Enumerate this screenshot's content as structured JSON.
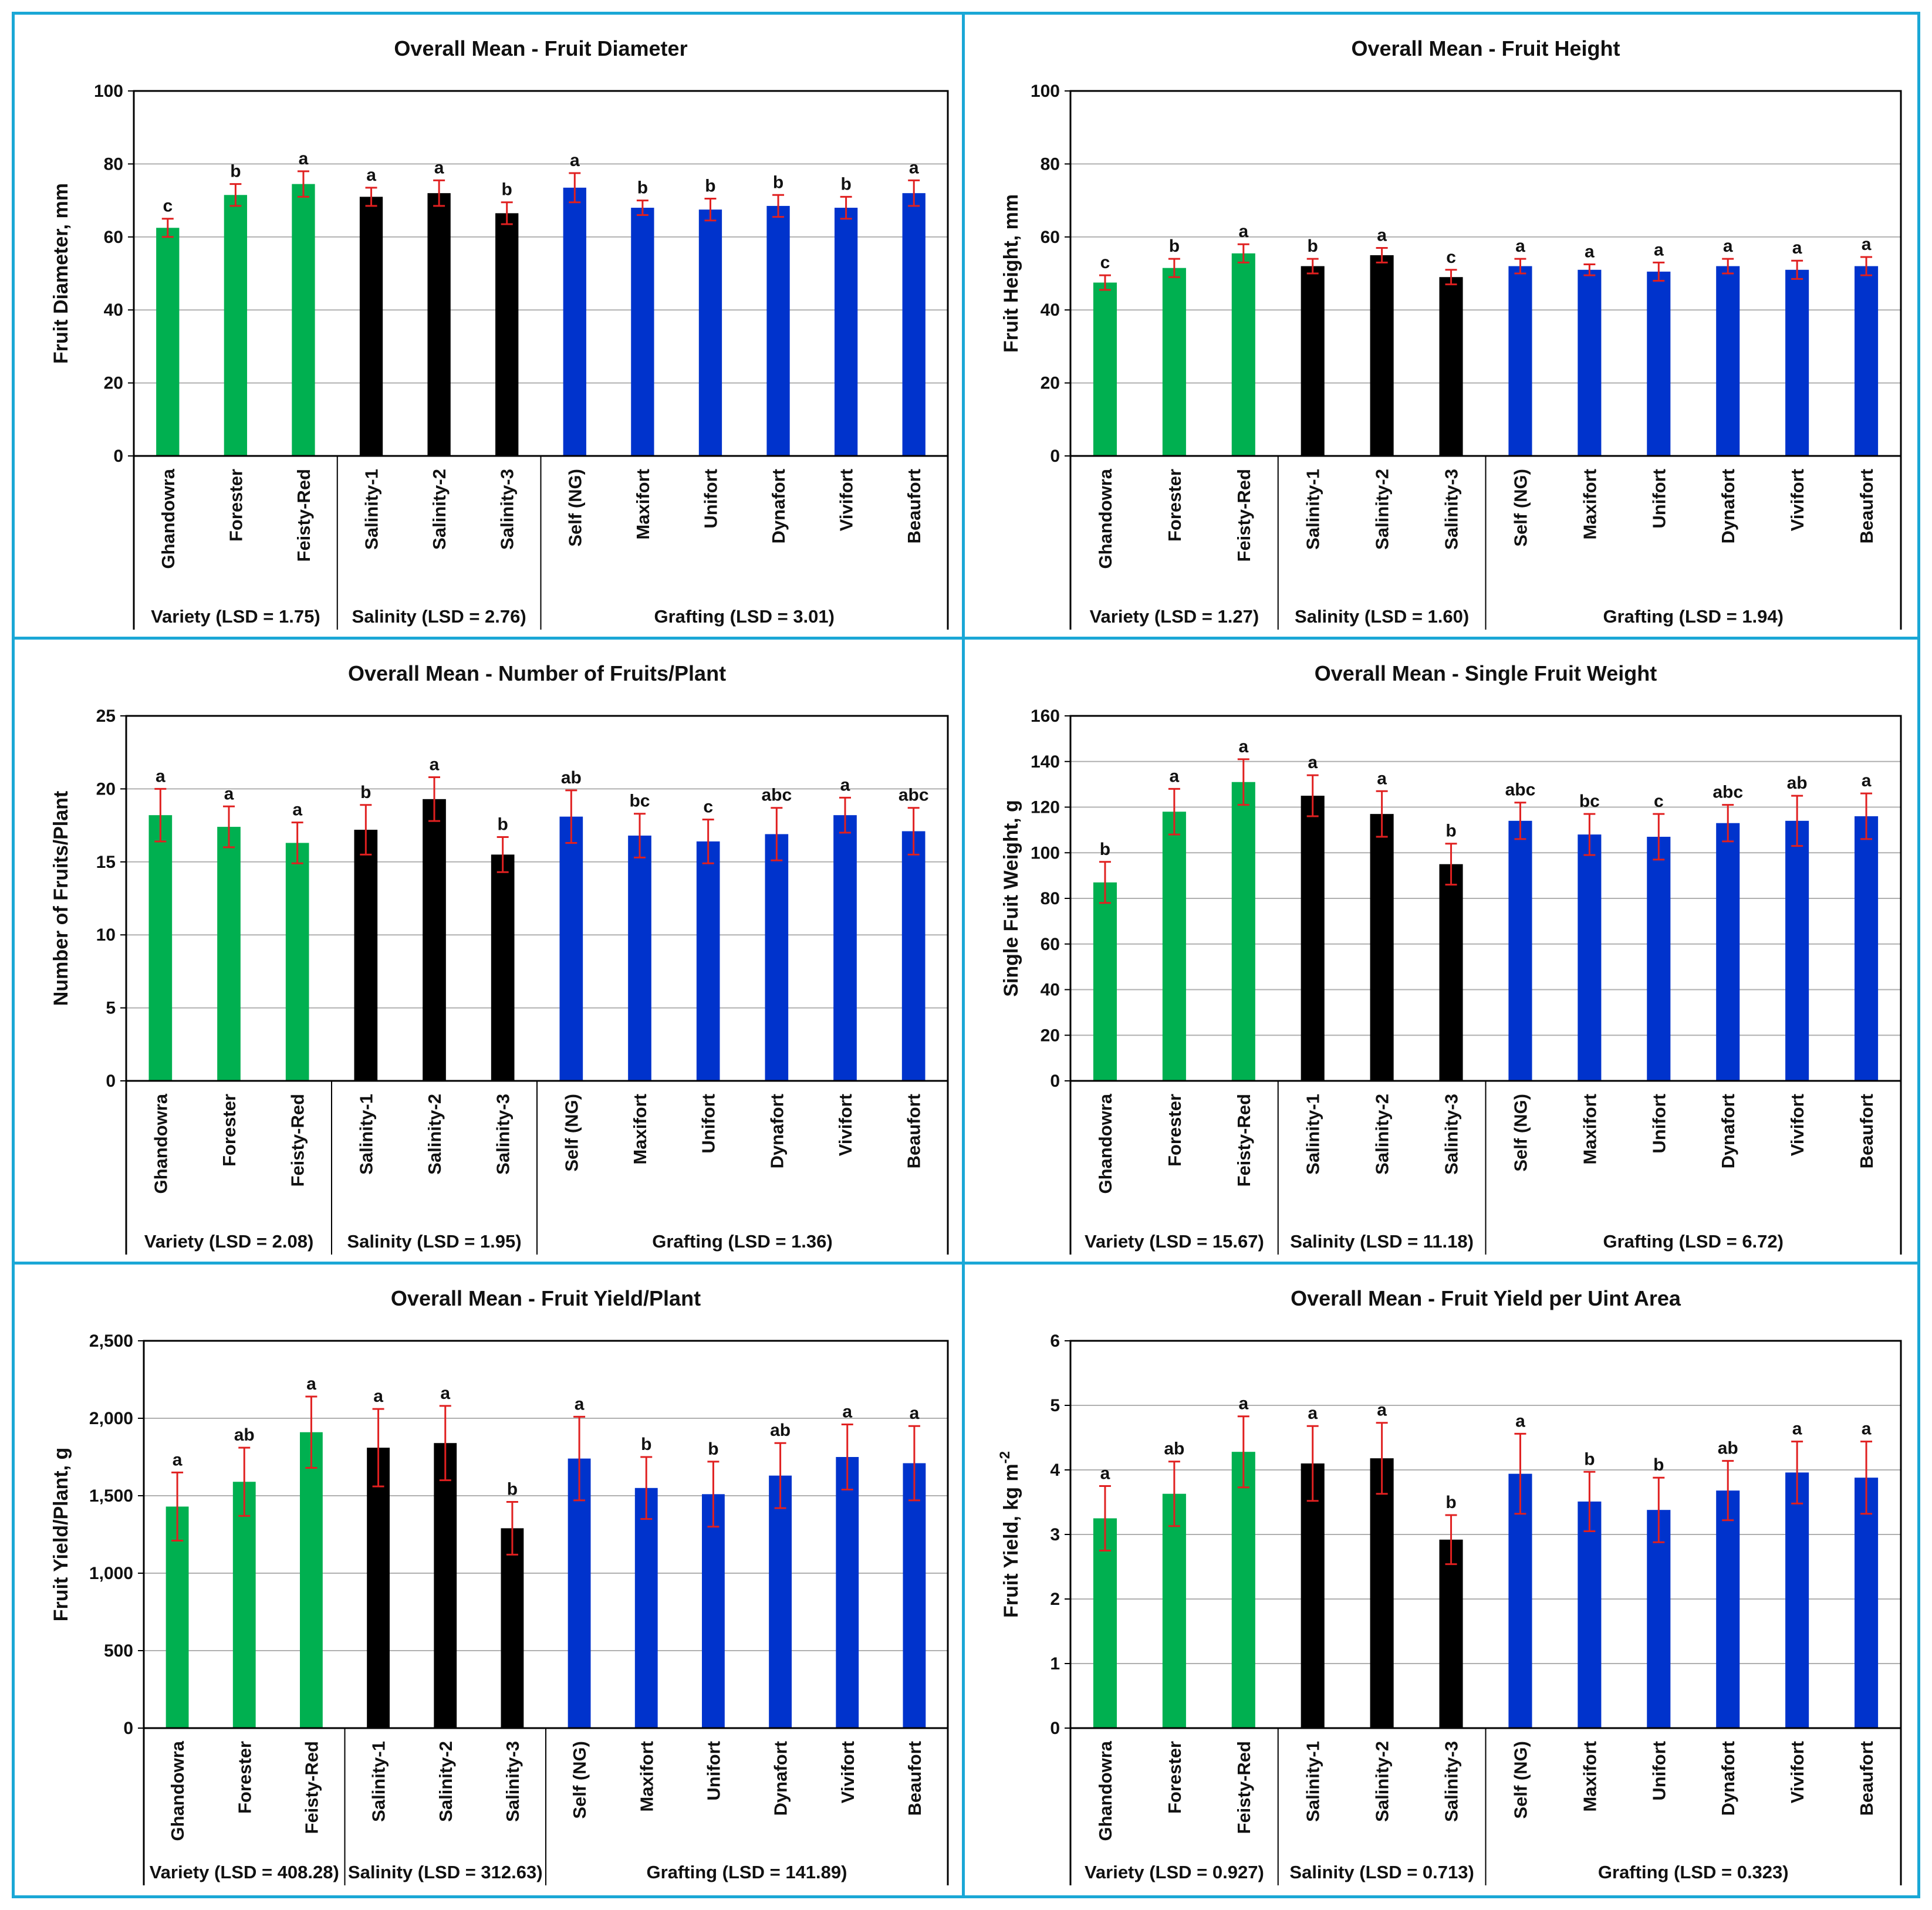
{
  "colors": {
    "variety": "#00b050",
    "salinity": "#000000",
    "grafting": "#0033cc",
    "error_bar": "#e02020",
    "panel_border": "#1aa7d6",
    "grid": "#b0b0b0"
  },
  "categories": [
    "Ghandowra",
    "Forester",
    "Feisty-Red",
    "Salinity-1",
    "Salinity-2",
    "Salinity-3",
    "Self (NG)",
    "Maxifort",
    "Unifort",
    "Dynafort",
    "Vivifort",
    "Beaufort"
  ],
  "group_of_category": [
    "variety",
    "variety",
    "variety",
    "salinity",
    "salinity",
    "salinity",
    "grafting",
    "grafting",
    "grafting",
    "grafting",
    "grafting",
    "grafting"
  ],
  "chart_data": [
    {
      "type": "bar",
      "title": "Overall Mean - Fruit Diameter",
      "ylabel": "Fruit Diameter, mm",
      "ylim": [
        0,
        100
      ],
      "yticks": [
        "0",
        "20",
        "40",
        "60",
        "80",
        "100"
      ],
      "values": [
        62.5,
        71.5,
        74.5,
        71,
        72,
        66.5,
        73.5,
        68,
        67.5,
        68.5,
        68,
        72
      ],
      "errors": [
        2.5,
        3,
        3.5,
        2.5,
        3.5,
        3,
        4,
        2,
        3,
        3,
        3,
        3.5
      ],
      "letters": [
        "c",
        "b",
        "a",
        "a",
        "a",
        "b",
        "a",
        "b",
        "b",
        "b",
        "b",
        "a"
      ],
      "groups": [
        {
          "name": "variety",
          "label": "Variety (LSD = 1.75)"
        },
        {
          "name": "salinity",
          "label": "Salinity (LSD = 2.76)"
        },
        {
          "name": "grafting",
          "label": "Grafting (LSD = 3.01)"
        }
      ]
    },
    {
      "type": "bar",
      "title": "Overall Mean - Fruit Height",
      "ylabel": "Fruit Height, mm",
      "ylim": [
        0,
        100
      ],
      "yticks": [
        "0",
        "20",
        "40",
        "60",
        "80",
        "100"
      ],
      "values": [
        47.5,
        51.5,
        55.5,
        52,
        55,
        49,
        52,
        51,
        50.5,
        52,
        51,
        52
      ],
      "errors": [
        2,
        2.5,
        2.5,
        2,
        2,
        2,
        2,
        1.5,
        2.5,
        2,
        2.5,
        2.5
      ],
      "letters": [
        "c",
        "b",
        "a",
        "b",
        "a",
        "c",
        "a",
        "a",
        "a",
        "a",
        "a",
        "a"
      ],
      "groups": [
        {
          "name": "variety",
          "label": "Variety (LSD = 1.27)"
        },
        {
          "name": "salinity",
          "label": "Salinity (LSD = 1.60)"
        },
        {
          "name": "grafting",
          "label": "Grafting (LSD = 1.94)"
        }
      ]
    },
    {
      "type": "bar",
      "title": "Overall Mean - Number of Fruits/Plant",
      "ylabel": "Number of Fruits/Plant",
      "ylim": [
        0,
        25
      ],
      "yticks": [
        "0",
        "5",
        "10",
        "15",
        "20",
        "25"
      ],
      "values": [
        18.2,
        17.4,
        16.3,
        17.2,
        19.3,
        15.5,
        18.1,
        16.8,
        16.4,
        16.9,
        18.2,
        17.1
      ],
      "errors": [
        1.8,
        1.4,
        1.4,
        1.7,
        1.5,
        1.2,
        1.8,
        1.5,
        1.5,
        1.8,
        1.2,
        1.6
      ],
      "letters": [
        "a",
        "a",
        "a",
        "b",
        "a",
        "b",
        "ab",
        "bc",
        "c",
        "abc",
        "a",
        "abc"
      ],
      "groups": [
        {
          "name": "variety",
          "label": "Variety (LSD = 2.08)"
        },
        {
          "name": "salinity",
          "label": "Salinity (LSD = 1.95)"
        },
        {
          "name": "grafting",
          "label": "Grafting (LSD = 1.36)"
        }
      ]
    },
    {
      "type": "bar",
      "title": "Overall Mean - Single Fruit Weight",
      "ylabel": "Single Fuit Weight, g",
      "ylim": [
        0,
        160
      ],
      "yticks": [
        "0",
        "20",
        "40",
        "60",
        "80",
        "100",
        "120",
        "140",
        "160"
      ],
      "values": [
        87,
        118,
        131,
        125,
        117,
        95,
        114,
        108,
        107,
        113,
        114,
        116
      ],
      "errors": [
        9,
        10,
        10,
        9,
        10,
        9,
        8,
        9,
        10,
        8,
        11,
        10
      ],
      "letters": [
        "b",
        "a",
        "a",
        "a",
        "a",
        "b",
        "abc",
        "bc",
        "c",
        "abc",
        "ab",
        "a"
      ],
      "groups": [
        {
          "name": "variety",
          "label": "Variety (LSD = 15.67)"
        },
        {
          "name": "salinity",
          "label": "Salinity (LSD = 11.18)"
        },
        {
          "name": "grafting",
          "label": "Grafting (LSD = 6.72)"
        }
      ]
    },
    {
      "type": "bar",
      "title": "Overall Mean - Fruit Yield/Plant",
      "ylabel": "Fruit Yield/Plant, g",
      "ylim": [
        0,
        2500
      ],
      "yticks": [
        "0",
        "500",
        "1,000",
        "1,500",
        "2,000",
        "2,500"
      ],
      "values": [
        1430,
        1590,
        1910,
        1810,
        1840,
        1290,
        1740,
        1550,
        1510,
        1630,
        1750,
        1710
      ],
      "errors": [
        220,
        220,
        230,
        250,
        240,
        170,
        270,
        200,
        210,
        210,
        210,
        240
      ],
      "letters": [
        "a",
        "ab",
        "a",
        "a",
        "a",
        "b",
        "a",
        "b",
        "b",
        "ab",
        "a",
        "a"
      ],
      "groups": [
        {
          "name": "variety",
          "label": "Variety (LSD = 408.28)"
        },
        {
          "name": "salinity",
          "label": "Salinity (LSD = 312.63)"
        },
        {
          "name": "grafting",
          "label": "Grafting (LSD = 141.89)"
        }
      ]
    },
    {
      "type": "bar",
      "title": "Overall Mean - Fruit Yield per Uint Area",
      "ylabel": "Fruit Yield, kg m",
      "ylabel_sup": "-2",
      "ylim": [
        0,
        6
      ],
      "yticks": [
        "0",
        "1",
        "2",
        "3",
        "4",
        "5",
        "6"
      ],
      "values": [
        3.25,
        3.63,
        4.28,
        4.1,
        4.18,
        2.92,
        3.94,
        3.51,
        3.38,
        3.68,
        3.96,
        3.88
      ],
      "errors": [
        0.5,
        0.5,
        0.55,
        0.58,
        0.55,
        0.38,
        0.62,
        0.46,
        0.5,
        0.46,
        0.48,
        0.56
      ],
      "letters": [
        "a",
        "ab",
        "a",
        "a",
        "a",
        "b",
        "a",
        "b",
        "b",
        "ab",
        "a",
        "a"
      ],
      "groups": [
        {
          "name": "variety",
          "label": "Variety (LSD = 0.927)"
        },
        {
          "name": "salinity",
          "label": "Salinity (LSD = 0.713)"
        },
        {
          "name": "grafting",
          "label": "Grafting (LSD = 0.323)"
        }
      ]
    }
  ]
}
